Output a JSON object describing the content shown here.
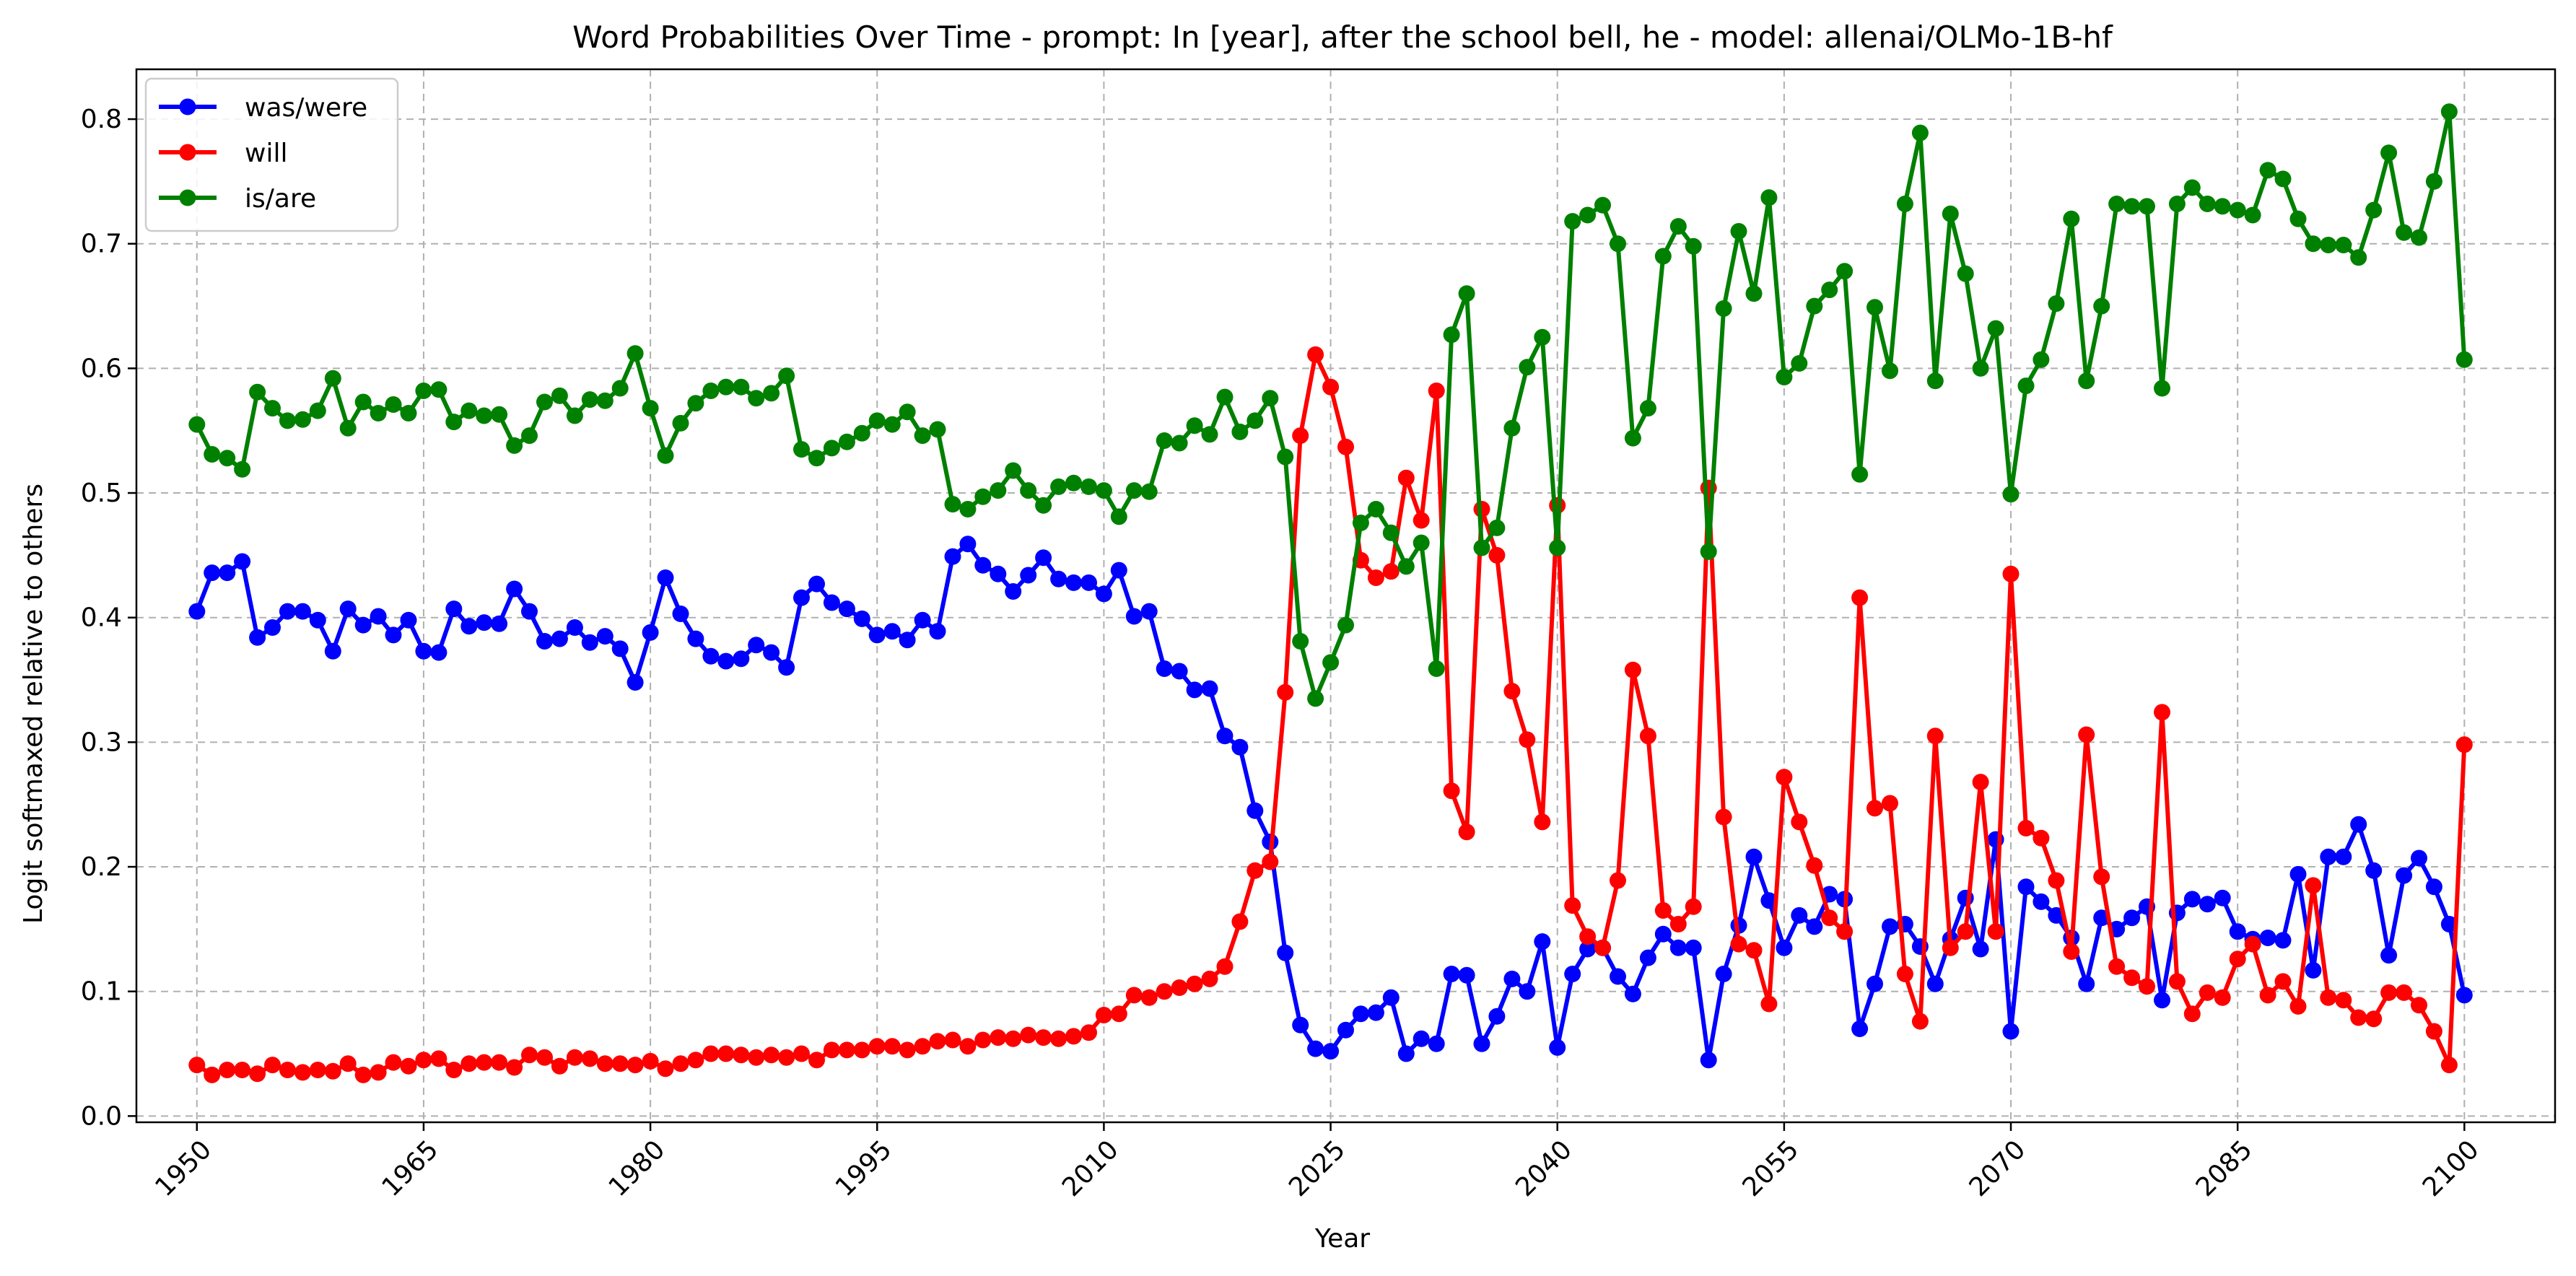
{
  "chart_data": {
    "type": "line",
    "title": "Word Probabilities Over Time - prompt: In [year], after the school bell, he - model: allenai/OLMo-1B-hf",
    "xlabel": "Year",
    "ylabel": "Logit softmaxed relative to others",
    "xlim": [
      1946,
      2106
    ],
    "ylim": [
      -0.005,
      0.84
    ],
    "x_ticks": [
      "1950",
      "1965",
      "1980",
      "1995",
      "2010",
      "2025",
      "2040",
      "2055",
      "2070",
      "2085",
      "2100"
    ],
    "y_ticks": [
      "0.0",
      "0.1",
      "0.2",
      "0.3",
      "0.4",
      "0.5",
      "0.6",
      "0.7",
      "0.8"
    ],
    "grid": true,
    "legend_position": "top-left",
    "x": [
      1950,
      1951,
      1952,
      1953,
      1954,
      1955,
      1956,
      1957,
      1958,
      1959,
      1960,
      1961,
      1962,
      1963,
      1964,
      1965,
      1966,
      1967,
      1968,
      1969,
      1970,
      1971,
      1972,
      1973,
      1974,
      1975,
      1976,
      1977,
      1978,
      1979,
      1980,
      1981,
      1982,
      1983,
      1984,
      1985,
      1986,
      1987,
      1988,
      1989,
      1990,
      1991,
      1992,
      1993,
      1994,
      1995,
      1996,
      1997,
      1998,
      1999,
      2000,
      2001,
      2002,
      2003,
      2004,
      2005,
      2006,
      2007,
      2008,
      2009,
      2010,
      2011,
      2012,
      2013,
      2014,
      2015,
      2016,
      2017,
      2018,
      2019,
      2020,
      2021,
      2022,
      2023,
      2024,
      2025,
      2026,
      2027,
      2028,
      2029,
      2030,
      2031,
      2032,
      2033,
      2034,
      2035,
      2036,
      2037,
      2038,
      2039,
      2040,
      2041,
      2042,
      2043,
      2044,
      2045,
      2046,
      2047,
      2048,
      2049,
      2050,
      2051,
      2052,
      2053,
      2054,
      2055,
      2056,
      2057,
      2058,
      2059,
      2060,
      2061,
      2062,
      2063,
      2064,
      2065,
      2066,
      2067,
      2068,
      2069,
      2070,
      2071,
      2072,
      2073,
      2074,
      2075,
      2076,
      2077,
      2078,
      2079,
      2080,
      2081,
      2082,
      2083,
      2084,
      2085,
      2086,
      2087,
      2088,
      2089,
      2090,
      2091,
      2092,
      2093,
      2094,
      2095,
      2096,
      2097,
      2098,
      2099,
      2100
    ],
    "series": [
      {
        "name": "was/were",
        "color": "#0000ff",
        "values": [
          0.405,
          0.436,
          0.436,
          0.445,
          0.384,
          0.392,
          0.405,
          0.405,
          0.398,
          0.373,
          0.407,
          0.394,
          0.401,
          0.386,
          0.398,
          0.373,
          0.372,
          0.407,
          0.393,
          0.396,
          0.395,
          0.423,
          0.405,
          0.381,
          0.383,
          0.392,
          0.38,
          0.385,
          0.375,
          0.348,
          0.388,
          0.432,
          0.403,
          0.383,
          0.369,
          0.365,
          0.367,
          0.378,
          0.372,
          0.36,
          0.416,
          0.427,
          0.412,
          0.407,
          0.399,
          0.386,
          0.389,
          0.382,
          0.398,
          0.389,
          0.449,
          0.459,
          0.442,
          0.435,
          0.421,
          0.434,
          0.448,
          0.431,
          0.428,
          0.428,
          0.419,
          0.438,
          0.401,
          0.405,
          0.359,
          0.357,
          0.342,
          0.343,
          0.305,
          0.296,
          0.245,
          0.22,
          0.131,
          0.073,
          0.054,
          0.052,
          0.069,
          0.082,
          0.083,
          0.095,
          0.05,
          0.062,
          0.058,
          0.114,
          0.113,
          0.058,
          0.08,
          0.11,
          0.1,
          0.14,
          0.055,
          0.114,
          0.134,
          0.135,
          0.112,
          0.098,
          0.127,
          0.146,
          0.135,
          0.135,
          0.045,
          0.114,
          0.153,
          0.208,
          0.173,
          0.135,
          0.161,
          0.152,
          0.178,
          0.174,
          0.07,
          0.106,
          0.152,
          0.154,
          0.136,
          0.106,
          0.142,
          0.175,
          0.134,
          0.222,
          0.068,
          0.184,
          0.172,
          0.161,
          0.143,
          0.106,
          0.159,
          0.15,
          0.159,
          0.168,
          0.093,
          0.163,
          0.174,
          0.17,
          0.175,
          0.148,
          0.142,
          0.143,
          0.141,
          0.194,
          0.117,
          0.208,
          0.208,
          0.234,
          0.197,
          0.129,
          0.193,
          0.207,
          0.184,
          0.154,
          0.097
        ]
      },
      {
        "name": "will",
        "color": "#ff0000",
        "values": [
          0.041,
          0.033,
          0.037,
          0.037,
          0.034,
          0.041,
          0.037,
          0.035,
          0.037,
          0.036,
          0.042,
          0.033,
          0.035,
          0.043,
          0.04,
          0.045,
          0.046,
          0.037,
          0.042,
          0.043,
          0.043,
          0.039,
          0.049,
          0.047,
          0.04,
          0.047,
          0.046,
          0.042,
          0.042,
          0.041,
          0.044,
          0.038,
          0.042,
          0.045,
          0.05,
          0.05,
          0.049,
          0.047,
          0.049,
          0.047,
          0.05,
          0.045,
          0.053,
          0.053,
          0.053,
          0.056,
          0.056,
          0.053,
          0.056,
          0.06,
          0.061,
          0.056,
          0.061,
          0.063,
          0.062,
          0.065,
          0.063,
          0.062,
          0.064,
          0.067,
          0.081,
          0.082,
          0.097,
          0.095,
          0.1,
          0.103,
          0.106,
          0.11,
          0.12,
          0.156,
          0.197,
          0.204,
          0.34,
          0.546,
          0.611,
          0.585,
          0.537,
          0.446,
          0.432,
          0.437,
          0.512,
          0.478,
          0.582,
          0.261,
          0.228,
          0.487,
          0.45,
          0.341,
          0.302,
          0.236,
          0.49,
          0.169,
          0.144,
          0.135,
          0.189,
          0.358,
          0.305,
          0.165,
          0.154,
          0.168,
          0.504,
          0.24,
          0.138,
          0.133,
          0.09,
          0.272,
          0.236,
          0.201,
          0.159,
          0.148,
          0.416,
          0.247,
          0.251,
          0.114,
          0.076,
          0.305,
          0.135,
          0.148,
          0.268,
          0.148,
          0.435,
          0.231,
          0.223,
          0.189,
          0.132,
          0.306,
          0.192,
          0.12,
          0.111,
          0.104,
          0.324,
          0.108,
          0.082,
          0.099,
          0.095,
          0.126,
          0.138,
          0.097,
          0.108,
          0.088,
          0.185,
          0.095,
          0.093,
          0.079,
          0.078,
          0.099,
          0.099,
          0.089,
          0.068,
          0.041,
          0.298
        ]
      },
      {
        "name": "is/are",
        "color": "#008000",
        "values": [
          0.555,
          0.531,
          0.528,
          0.519,
          0.581,
          0.568,
          0.558,
          0.559,
          0.566,
          0.592,
          0.552,
          0.573,
          0.564,
          0.571,
          0.564,
          0.582,
          0.583,
          0.557,
          0.566,
          0.562,
          0.563,
          0.538,
          0.546,
          0.573,
          0.578,
          0.562,
          0.575,
          0.574,
          0.584,
          0.612,
          0.568,
          0.53,
          0.556,
          0.572,
          0.582,
          0.585,
          0.585,
          0.576,
          0.58,
          0.594,
          0.535,
          0.528,
          0.536,
          0.541,
          0.548,
          0.558,
          0.555,
          0.565,
          0.546,
          0.551,
          0.491,
          0.487,
          0.497,
          0.502,
          0.518,
          0.502,
          0.49,
          0.505,
          0.508,
          0.505,
          0.502,
          0.481,
          0.502,
          0.501,
          0.542,
          0.54,
          0.554,
          0.547,
          0.577,
          0.549,
          0.558,
          0.576,
          0.529,
          0.381,
          0.335,
          0.364,
          0.394,
          0.476,
          0.487,
          0.468,
          0.441,
          0.46,
          0.359,
          0.627,
          0.66,
          0.456,
          0.472,
          0.552,
          0.601,
          0.625,
          0.456,
          0.718,
          0.723,
          0.731,
          0.7,
          0.544,
          0.568,
          0.69,
          0.714,
          0.698,
          0.453,
          0.648,
          0.71,
          0.66,
          0.737,
          0.593,
          0.604,
          0.65,
          0.663,
          0.678,
          0.515,
          0.649,
          0.598,
          0.732,
          0.789,
          0.59,
          0.724,
          0.676,
          0.6,
          0.632,
          0.499,
          0.586,
          0.607,
          0.652,
          0.72,
          0.59,
          0.65,
          0.732,
          0.73,
          0.73,
          0.584,
          0.732,
          0.745,
          0.732,
          0.73,
          0.727,
          0.723,
          0.759,
          0.752,
          0.72,
          0.7,
          0.699,
          0.699,
          0.689,
          0.727,
          0.773,
          0.709,
          0.705,
          0.75,
          0.806,
          0.607
        ]
      }
    ]
  }
}
